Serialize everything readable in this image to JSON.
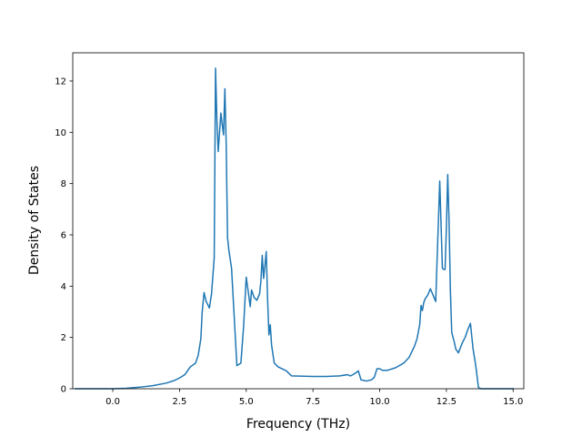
{
  "chart_data": {
    "type": "line",
    "xlabel": "Frequency (THz)",
    "ylabel": "Density of States",
    "xlim": [
      -1.5,
      15.4
    ],
    "ylim": [
      0,
      13.1
    ],
    "xticks": [
      0.0,
      2.5,
      5.0,
      7.5,
      10.0,
      12.5,
      15.0
    ],
    "xtick_labels": [
      "0.0",
      "2.5",
      "5.0",
      "7.5",
      "10.0",
      "12.5",
      "15.0"
    ],
    "yticks": [
      0,
      2,
      4,
      6,
      8,
      10,
      12
    ],
    "ytick_labels": [
      "0",
      "2",
      "4",
      "6",
      "8",
      "10",
      "12"
    ],
    "grid": false,
    "series": [
      {
        "color": "#1f77b4",
        "x": [
          -1.4,
          -0.5,
          0.0,
          0.5,
          1.0,
          1.5,
          2.0,
          2.3,
          2.5,
          2.7,
          2.9,
          3.1,
          3.2,
          3.3,
          3.35,
          3.42,
          3.5,
          3.55,
          3.62,
          3.7,
          3.8,
          3.85,
          3.9,
          3.95,
          4.0,
          4.05,
          4.1,
          4.15,
          4.2,
          4.25,
          4.3,
          4.35,
          4.45,
          4.55,
          4.65,
          4.8,
          4.9,
          5.0,
          5.1,
          5.15,
          5.2,
          5.3,
          5.4,
          5.5,
          5.55,
          5.6,
          5.65,
          5.7,
          5.75,
          5.8,
          5.85,
          5.9,
          5.95,
          6.05,
          6.2,
          6.5,
          6.7,
          7.5,
          8.0,
          8.5,
          8.8,
          8.9,
          9.0,
          9.15,
          9.2,
          9.3,
          9.5,
          9.7,
          9.8,
          9.9,
          10.0,
          10.1,
          10.3,
          10.6,
          10.9,
          11.1,
          11.3,
          11.4,
          11.5,
          11.55,
          11.6,
          11.65,
          11.7,
          11.8,
          11.9,
          12.0,
          12.1,
          12.15,
          12.2,
          12.25,
          12.3,
          12.35,
          12.4,
          12.45,
          12.5,
          12.55,
          12.6,
          12.65,
          12.7,
          12.75,
          12.8,
          12.85,
          12.95,
          13.1,
          13.2,
          13.3,
          13.4,
          13.5,
          13.6,
          13.7,
          13.8,
          13.9,
          14.2,
          14.6,
          15.0
        ],
        "y": [
          0.0,
          0.0,
          0.0,
          0.02,
          0.06,
          0.12,
          0.22,
          0.32,
          0.42,
          0.55,
          0.85,
          1.0,
          1.3,
          1.95,
          3.0,
          3.75,
          3.4,
          3.3,
          3.15,
          3.7,
          5.1,
          12.5,
          10.5,
          9.25,
          10.0,
          10.75,
          10.3,
          9.9,
          11.7,
          9.5,
          5.9,
          5.4,
          4.7,
          2.8,
          0.9,
          1.0,
          2.4,
          4.35,
          3.6,
          3.2,
          3.85,
          3.55,
          3.45,
          3.7,
          4.2,
          5.2,
          4.3,
          4.8,
          5.35,
          3.5,
          2.1,
          2.5,
          1.7,
          1.0,
          0.85,
          0.7,
          0.5,
          0.48,
          0.48,
          0.5,
          0.55,
          0.5,
          0.55,
          0.65,
          0.7,
          0.35,
          0.3,
          0.35,
          0.45,
          0.78,
          0.78,
          0.72,
          0.72,
          0.82,
          1.0,
          1.22,
          1.65,
          1.95,
          2.5,
          3.25,
          3.05,
          3.35,
          3.5,
          3.65,
          3.9,
          3.65,
          3.4,
          5.0,
          6.5,
          8.1,
          6.4,
          4.7,
          4.65,
          4.65,
          6.3,
          8.35,
          6.5,
          3.8,
          2.2,
          2.0,
          1.8,
          1.55,
          1.4,
          1.8,
          2.0,
          2.3,
          2.55,
          1.55,
          0.9,
          0.05,
          0.0,
          0.0,
          0.0,
          0.0,
          0.0
        ]
      }
    ]
  }
}
